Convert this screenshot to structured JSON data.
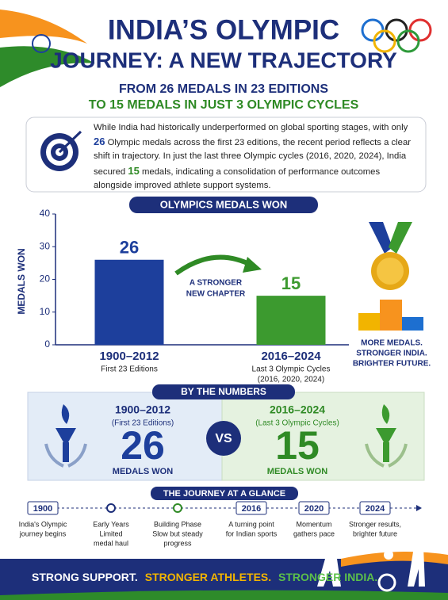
{
  "header": {
    "title_line1": "INDIA’S OLYMPIC",
    "title_line2": "JOURNEY: A NEW TRAJECTORY",
    "subtitle_line1": "FROM 26 MEDALS IN 23 EDITIONS",
    "subtitle_line2": "TO 15 MEDALS IN JUST 3 OLYMPIC CYCLES"
  },
  "intro": {
    "parts": [
      "While India had historically underperformed on global sporting stages, with only ",
      "26",
      " Olympic medals across the first 23 editions, the recent period reflects a clear shift in trajectory. In just the last three Olympic cycles (2016, 2020, 2024), India secured ",
      "15",
      " medals, indicating a consolidation of performance outcomes alongside improved athlete support systems."
    ]
  },
  "chart_data": {
    "type": "bar",
    "title": "OLYMPICS MEDALS WON",
    "y_label": "MEDALS WON",
    "categories": [
      "1900–2012",
      "2016–2024"
    ],
    "category_notes": [
      [
        "First 23 Editions"
      ],
      [
        "Last 3 Olympic Cycles",
        "(2016, 2020, 2024)"
      ]
    ],
    "values": [
      26,
      15
    ],
    "colors": [
      "#1d3f9c",
      "#3c9a2f"
    ],
    "ylim": [
      0,
      40
    ],
    "yticks": [
      0,
      10,
      20,
      30,
      40
    ],
    "annotation": [
      "A STRONGER",
      "NEW CHAPTER"
    ]
  },
  "side_panel": {
    "lines": [
      "MORE MEDALS.",
      "STRONGER INDIA.",
      "BRIGHTER FUTURE."
    ]
  },
  "by_the_numbers": {
    "title": "BY THE NUMBERS",
    "vs": "VS",
    "panels": [
      {
        "period": "1900–2012",
        "note": "(First 23 Editions)",
        "value": "26",
        "label": "MEDALS WON"
      },
      {
        "period": "2016–2024",
        "note": "(Last 3 Olympic Cycles)",
        "value": "15",
        "label": "MEDALS WON"
      }
    ]
  },
  "timeline": {
    "title": "THE JOURNEY AT A GLANCE",
    "events": [
      {
        "marker": "1900",
        "text": [
          "India's Olympic",
          "journey begins"
        ]
      },
      {
        "text": [
          "Early Years",
          "Limited",
          "medal haul"
        ]
      },
      {
        "text": [
          "Building Phase",
          "Slow but steady",
          "progress"
        ]
      },
      {
        "marker": "2016",
        "text": [
          "A turning point",
          "for Indian sports"
        ]
      },
      {
        "marker": "2020",
        "text": [
          "Momentum",
          "gathers pace"
        ]
      },
      {
        "marker": "2024",
        "text": [
          "Stronger results,",
          "brighter future"
        ]
      }
    ]
  },
  "footer": {
    "parts": [
      "STRONG SUPPORT.",
      "STRONGER ATHLETES.",
      "STRONGER INDIA."
    ]
  }
}
